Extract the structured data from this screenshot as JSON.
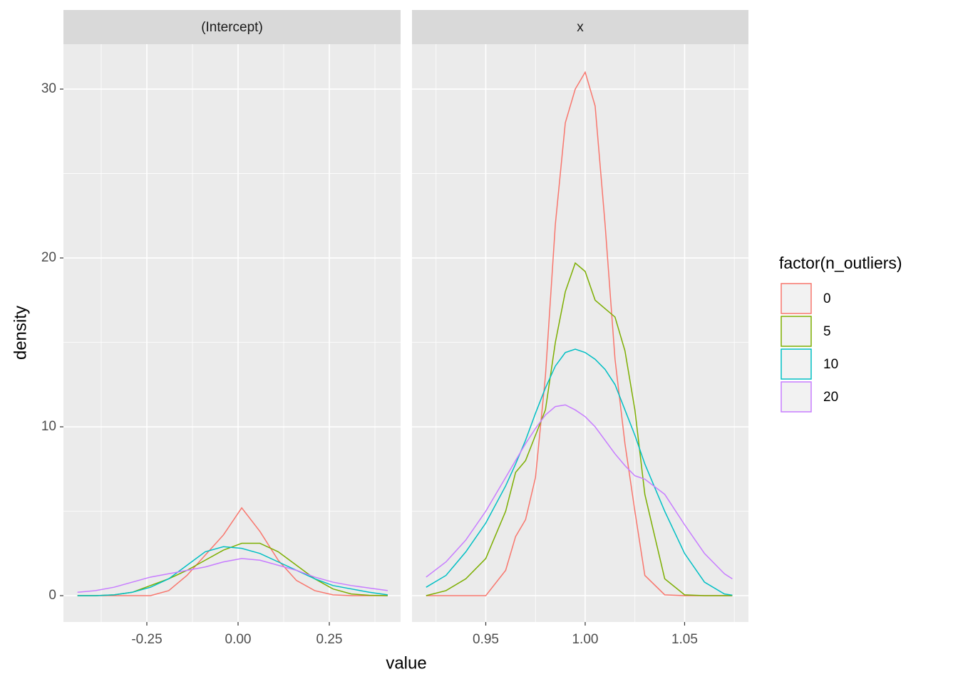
{
  "chart_data": {
    "type": "line",
    "x_label": "value",
    "y_label": "density",
    "legend_title": "factor(n_outliers)",
    "legend": [
      {
        "name": "0",
        "color": "#F8766D"
      },
      {
        "name": "5",
        "color": "#7CAE00"
      },
      {
        "name": "10",
        "color": "#00BFC4"
      },
      {
        "name": "20",
        "color": "#C77CFF"
      }
    ],
    "ylim": [
      -1.56,
      32.66
    ],
    "yticks": [
      0,
      10,
      20,
      30
    ],
    "grid": true,
    "facets": [
      {
        "title": "(Intercept)",
        "xlim": [
          -0.4785,
          0.4453
        ],
        "xticks": [
          {
            "value": -0.25,
            "label": "-0.25"
          },
          {
            "value": 0,
            "label": "0.00"
          },
          {
            "value": 0.25,
            "label": "0.25"
          }
        ],
        "x": [
          -0.44,
          -0.39,
          -0.34,
          -0.29,
          -0.24,
          -0.19,
          -0.14,
          -0.09,
          -0.04,
          0.01,
          0.06,
          0.11,
          0.16,
          0.21,
          0.26,
          0.31,
          0.36,
          0.41
        ],
        "series": [
          {
            "values": [
              0,
              0,
              0,
              0,
              0,
              0.3,
              1.2,
              2.4,
              3.6,
              5.2,
              3.8,
              2.1,
              0.9,
              0.3,
              0.05,
              0,
              0,
              0
            ]
          },
          {
            "values": [
              0,
              0,
              0.05,
              0.2,
              0.6,
              1.0,
              1.5,
              2.1,
              2.7,
              3.1,
              3.1,
              2.6,
              1.8,
              1.0,
              0.4,
              0.1,
              0.02,
              0
            ]
          },
          {
            "values": [
              0,
              0,
              0.05,
              0.2,
              0.5,
              1.0,
              1.8,
              2.6,
              2.9,
              2.8,
              2.5,
              2.0,
              1.5,
              1.0,
              0.6,
              0.4,
              0.2,
              0.05
            ]
          },
          {
            "values": [
              0.2,
              0.3,
              0.5,
              0.8,
              1.1,
              1.3,
              1.5,
              1.7,
              2.0,
              2.2,
              2.1,
              1.8,
              1.5,
              1.1,
              0.8,
              0.6,
              0.45,
              0.3
            ]
          }
        ]
      },
      {
        "title": "x",
        "xlim": [
          0.9129,
          1.0821
        ],
        "xticks": [
          0.95,
          {
            "value": 1.0,
            "label": "1.00"
          },
          1.05
        ],
        "x": [
          0.92,
          0.93,
          0.94,
          0.95,
          0.96,
          0.965,
          0.97,
          0.975,
          0.98,
          0.985,
          0.99,
          0.995,
          1.0,
          1.005,
          1.01,
          1.015,
          1.02,
          1.025,
          1.03,
          1.04,
          1.05,
          1.06,
          1.07,
          1.074
        ],
        "series": [
          {
            "values": [
              0,
              0,
              0,
              0,
              1.5,
              3.5,
              4.5,
              7,
              13,
              22,
              28,
              30,
              31,
              29,
              22,
              14,
              9,
              5,
              1.2,
              0.05,
              0,
              0,
              0,
              0
            ]
          },
          {
            "values": [
              0,
              0.3,
              1,
              2.2,
              5,
              7.3,
              8,
              9.5,
              11,
              15,
              18,
              19.7,
              19.2,
              17.5,
              17,
              16.5,
              14.5,
              11,
              6,
              1.0,
              0.05,
              0,
              0,
              0
            ]
          },
          {
            "values": [
              0.5,
              1.2,
              2.6,
              4.3,
              6.5,
              7.8,
              9.2,
              10.8,
              12.3,
              13.6,
              14.4,
              14.6,
              14.4,
              14.0,
              13.4,
              12.5,
              11.0,
              9.5,
              7.8,
              5.0,
              2.5,
              0.8,
              0.1,
              0.03
            ]
          },
          {
            "values": [
              1.1,
              2.0,
              3.3,
              5.0,
              7.0,
              8.0,
              9.0,
              9.9,
              10.7,
              11.2,
              11.3,
              11.0,
              10.6,
              10.0,
              9.2,
              8.4,
              7.7,
              7.1,
              6.9,
              6.0,
              4.2,
              2.5,
              1.3,
              1.0
            ]
          }
        ]
      }
    ]
  }
}
